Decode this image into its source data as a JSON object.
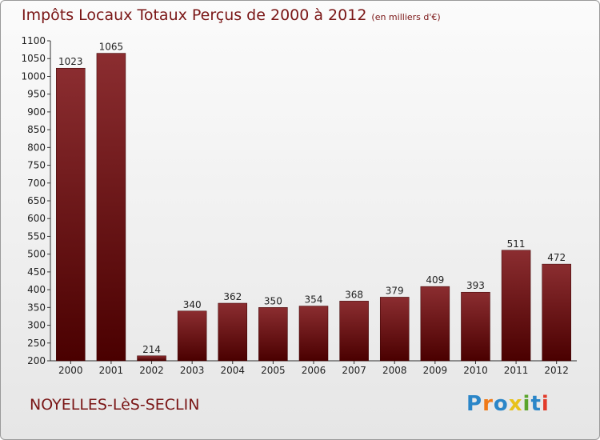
{
  "chart_data": {
    "type": "bar",
    "title": "Impôts Locaux Totaux Perçus de 2000 à 2012",
    "subtitle": "(en milliers d'€)",
    "categories": [
      "2000",
      "2001",
      "2002",
      "2003",
      "2004",
      "2005",
      "2006",
      "2007",
      "2008",
      "2009",
      "2010",
      "2011",
      "2012"
    ],
    "values": [
      1023,
      1065,
      214,
      340,
      362,
      350,
      354,
      368,
      379,
      409,
      393,
      511,
      472
    ],
    "ylim": [
      200,
      1100
    ],
    "yticks": [
      200,
      250,
      300,
      350,
      400,
      450,
      500,
      550,
      600,
      650,
      700,
      750,
      800,
      850,
      900,
      950,
      1000,
      1050,
      1100
    ],
    "xlabel": "",
    "ylabel": "",
    "grid": false,
    "bar_color": "#7a1a1e"
  },
  "footer": {
    "city": "NOYELLES-LèS-SECLIN",
    "logo": "Proxiti"
  }
}
